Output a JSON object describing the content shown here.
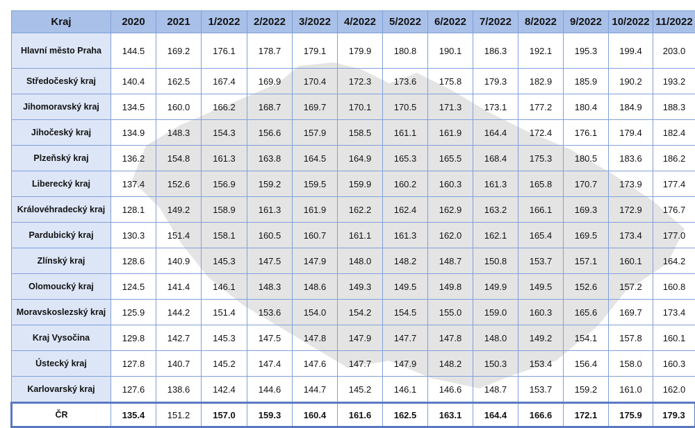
{
  "table": {
    "header": [
      "Kraj",
      "2020",
      "2021",
      "1/2022",
      "2/2022",
      "3/2022",
      "4/2022",
      "5/2022",
      "6/2022",
      "7/2022",
      "8/2022",
      "9/2022",
      "10/2022",
      "11/2022"
    ],
    "rows": [
      {
        "label": "Hlavní město Praha",
        "values": [
          "144.5",
          "169.2",
          "176.1",
          "178.7",
          "179.1",
          "179.9",
          "180.8",
          "190.1",
          "186.3",
          "192.1",
          "195.3",
          "199.4",
          "203.0"
        ]
      },
      {
        "label": "Středočeský kraj",
        "values": [
          "140.4",
          "162.5",
          "167.4",
          "169.9",
          "170.4",
          "172.3",
          "173.6",
          "175.8",
          "179.3",
          "182.9",
          "185.9",
          "190.2",
          "193.2"
        ]
      },
      {
        "label": "Jihomoravský kraj",
        "values": [
          "134.5",
          "160.0",
          "166.2",
          "168.7",
          "169.7",
          "170.1",
          "170.5",
          "171.3",
          "173.1",
          "177.2",
          "180.4",
          "184.9",
          "188.3"
        ]
      },
      {
        "label": "Jihočeský kraj",
        "values": [
          "134.9",
          "148.3",
          "154.3",
          "156.6",
          "157.9",
          "158.5",
          "161.1",
          "161.9",
          "164.4",
          "172.4",
          "176.1",
          "179.4",
          "182.4"
        ]
      },
      {
        "label": "Plzeňský kraj",
        "values": [
          "136.2",
          "154.8",
          "161.3",
          "163.8",
          "164.5",
          "164.9",
          "165.3",
          "165.5",
          "168.4",
          "175.3",
          "180.5",
          "183.6",
          "186.2"
        ]
      },
      {
        "label": "Liberecký kraj",
        "values": [
          "137.4",
          "152.6",
          "156.9",
          "159.2",
          "159.5",
          "159.9",
          "160.2",
          "160.3",
          "161.3",
          "165.8",
          "170.7",
          "173.9",
          "177.4"
        ]
      },
      {
        "label": "Královéhradecký kraj",
        "values": [
          "128.1",
          "149.2",
          "158.9",
          "161.3",
          "161.9",
          "162.2",
          "162.4",
          "162.9",
          "163.2",
          "166.1",
          "169.3",
          "172.9",
          "176.7"
        ]
      },
      {
        "label": "Pardubický kraj",
        "values": [
          "130.3",
          "151.4",
          "158.1",
          "160.5",
          "160.7",
          "161.1",
          "161.3",
          "162.0",
          "162.1",
          "165.4",
          "169.5",
          "173.4",
          "177.0"
        ]
      },
      {
        "label": "Zlínský kraj",
        "values": [
          "128.6",
          "140.9",
          "145.3",
          "147.5",
          "147.9",
          "148.0",
          "148.2",
          "148.7",
          "150.8",
          "153.7",
          "157.1",
          "160.1",
          "164.2"
        ]
      },
      {
        "label": "Olomoucký kraj",
        "values": [
          "124.5",
          "141.4",
          "146.1",
          "148.3",
          "148.6",
          "149.3",
          "149.5",
          "149.8",
          "149.9",
          "149.5",
          "152.6",
          "157.2",
          "160.8"
        ]
      },
      {
        "label": "Moravskoslezský kraj",
        "values": [
          "125.9",
          "144.2",
          "151.4",
          "153.6",
          "154.0",
          "154.2",
          "154.5",
          "155.0",
          "159.0",
          "160.3",
          "165.6",
          "169.7",
          "173.4"
        ]
      },
      {
        "label": "Kraj Vysočina",
        "values": [
          "129.8",
          "142.7",
          "145.3",
          "147.5",
          "147.8",
          "147.9",
          "147.7",
          "147.8",
          "148.0",
          "149.2",
          "154.1",
          "157.8",
          "160.1"
        ]
      },
      {
        "label": "Ústecký kraj",
        "values": [
          "127.8",
          "140.7",
          "145.2",
          "147.4",
          "147.6",
          "147.7",
          "147.9",
          "148.2",
          "150.3",
          "153.4",
          "156.4",
          "158.0",
          "160.3"
        ]
      },
      {
        "label": "Karlovarský kraj",
        "values": [
          "127.6",
          "138.6",
          "142.4",
          "144.6",
          "144.7",
          "145.2",
          "146.1",
          "146.6",
          "148.7",
          "153.7",
          "159.2",
          "161.0",
          "162.0"
        ]
      }
    ],
    "total": {
      "label": "ČR",
      "values": [
        "135.4",
        "151.2",
        "157.0",
        "159.3",
        "160.4",
        "161.6",
        "162.5",
        "163.1",
        "164.4",
        "166.6",
        "172.1",
        "175.9",
        "179.3"
      ]
    }
  }
}
